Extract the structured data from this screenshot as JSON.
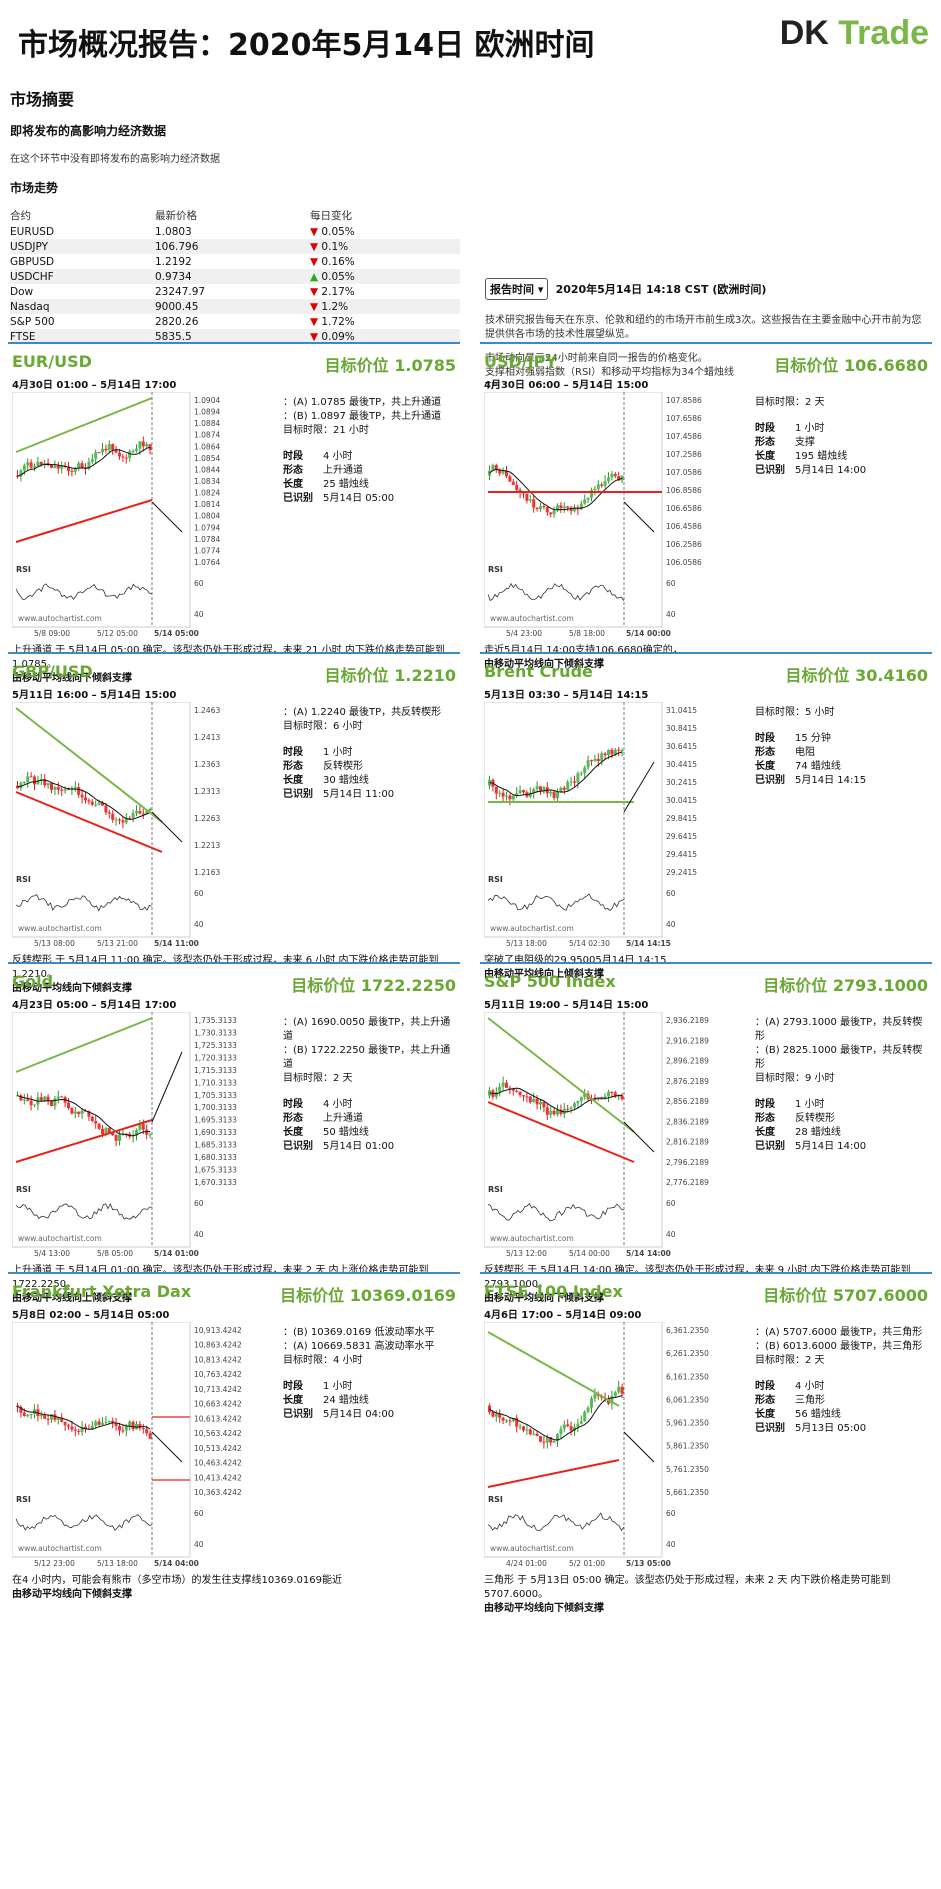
{
  "header": {
    "title": "市场概况报告：2020年5月14日 欧洲时间",
    "logo_a": "DK ",
    "logo_b": "Trade"
  },
  "summary": {
    "heading": "市场摘要",
    "sub": "即将发布的高影响力经济数据",
    "note": "在这个环节中没有即将发布的高影响力经济数据",
    "trend": "市场走势",
    "cols": [
      "合约",
      "最新价格",
      "每日变化"
    ],
    "rows": [
      {
        "name": "EURUSD",
        "price": "1.0803",
        "change": "0.05%",
        "dir": "down"
      },
      {
        "name": "USDJPY",
        "price": "106.796",
        "change": "0.1%",
        "dir": "down"
      },
      {
        "name": "GBPUSD",
        "price": "1.2192",
        "change": "0.16%",
        "dir": "down"
      },
      {
        "name": "USDCHF",
        "price": "0.9734",
        "change": "0.05%",
        "dir": "up"
      },
      {
        "name": "Dow",
        "price": "23247.97",
        "change": "2.17%",
        "dir": "down"
      },
      {
        "name": "Nasdaq",
        "price": "9000.45",
        "change": "1.2%",
        "dir": "down"
      },
      {
        "name": "S&P 500",
        "price": "2820.26",
        "change": "1.72%",
        "dir": "down"
      },
      {
        "name": "FTSE",
        "price": "5835.5",
        "change": "0.09%",
        "dir": "down"
      }
    ]
  },
  "report": {
    "button": "报告时间",
    "time": "2020年5月14日 14:18 CST (欧洲时间)",
    "p1": "技术研究报告每天在东京、伦敦和纽约的市场开市前生成3次。这些报告在主要金融中心开市前为您提供供各市场的技术性展望纵览。",
    "p2": "市场动向显示24小时前来自同一报告的价格变化。",
    "p3": "支撑相对强弱指数（RSI）和移动平均指标为34个蜡烛线",
    "p4": "TP:"
  },
  "colors": {
    "accent": "#6aa834",
    "border": "#3b8ac4",
    "red": "#e8221a",
    "green": "#7ab648"
  },
  "panels": [
    {
      "title": "EUR/USD",
      "target": "目标价位 1.0785",
      "range": "4月30日 01:00 – 5月14日 17:00",
      "tp": [
        "：(A) 1.0785 最後TP，共上升通道",
        "：(B) 1.0897 最後TP，共上升通道",
        "目标时限：21 小时"
      ],
      "kv": [
        [
          "时段",
          "4 小时"
        ],
        [
          "形态",
          "上升通道"
        ],
        [
          "长度",
          "25 蜡烛线"
        ],
        [
          "已识别",
          "5月14日 05:00"
        ]
      ],
      "desc": "上升通道 于 5月14日 05:00 确定。该型态仍处于形成过程，未来 21 小时 内下跌价格走势可能到 1.0785。",
      "desc2": "由移动平均线向下倾斜支撑",
      "yticks": [
        "1.0904",
        "1.0894",
        "1.0884",
        "1.0874",
        "1.0864",
        "1.0854",
        "1.0844",
        "1.0834",
        "1.0824",
        "1.0814",
        "1.0804",
        "1.0794",
        "1.0784",
        "1.0774",
        "1.0764"
      ],
      "xticks": [
        "5/8 09:00",
        "5/12 05:00",
        "5/14 05:00"
      ],
      "rsi": [
        "60",
        "40"
      ],
      "kind": "up"
    },
    {
      "title": "USD/JPY",
      "target": "目标价位 106.6680",
      "range": "4月30日 06:00 – 5月14日 15:00",
      "tp": [
        "目标时限：2 天"
      ],
      "kv": [
        [
          "时段",
          "1 小时"
        ],
        [
          "形态",
          "支撑"
        ],
        [
          "长度",
          "195 蜡烛线"
        ],
        [
          "已识别",
          "5月14日 14:00"
        ]
      ],
      "desc": "走近5月14日 14:00支持106.6680确定的，",
      "desc2": "由移动平均线向下倾斜支撑",
      "yticks": [
        "107.8586",
        "107.6586",
        "107.4586",
        "107.2586",
        "107.0586",
        "106.8586",
        "106.6586",
        "106.4586",
        "106.2586",
        "106.0586"
      ],
      "xticks": [
        "5/4 23:00",
        "5/8 18:00",
        "5/14 00:00"
      ],
      "rsi": [
        "60",
        "40"
      ],
      "kind": "sup"
    },
    {
      "title": "GBP/USD",
      "target": "目标价位 1.2210",
      "range": "5月11日 16:00 – 5月14日 15:00",
      "tp": [
        "：(A) 1.2240 最後TP，共反转楔形",
        "目标时限：6 小时"
      ],
      "kv": [
        [
          "时段",
          "1 小时"
        ],
        [
          "形态",
          "反转楔形"
        ],
        [
          "长度",
          "30 蜡烛线"
        ],
        [
          "已识别",
          "5月14日 11:00"
        ]
      ],
      "desc": "反转楔形 于 5月14日 11:00 确定。该型态仍处于形成过程，未来 6 小时 内下跌价格走势可能到 1.2210。",
      "desc2": "由移动平均线向下倾斜支撑",
      "yticks": [
        "1.2463",
        "1.2413",
        "1.2363",
        "1.2313",
        "1.2263",
        "1.2213",
        "1.2163"
      ],
      "xticks": [
        "5/13 08:00",
        "5/13 21:00",
        "5/14 11:00"
      ],
      "rsi": [
        "60",
        "40"
      ],
      "kind": "wedge"
    },
    {
      "title": "Brent Crude",
      "target": "目标价位 30.4160",
      "range": "5月13日 03:30 – 5月14日 14:15",
      "tp": [
        "目标时限：5 小时"
      ],
      "kv": [
        [
          "时段",
          "15 分钟"
        ],
        [
          "形态",
          "电阻"
        ],
        [
          "长度",
          "74 蜡烛线"
        ],
        [
          "已识别",
          "5月14日 14:15"
        ]
      ],
      "desc": "突破了电阻级的29.95005月14日 14:15",
      "desc2": "由移动平均线向上倾斜支撑",
      "yticks": [
        "31.0415",
        "30.8415",
        "30.6415",
        "30.4415",
        "30.2415",
        "30.0415",
        "29.8415",
        "29.6415",
        "29.4415",
        "29.2415"
      ],
      "xticks": [
        "5/13 18:00",
        "5/14 02:30",
        "5/14 14:15"
      ],
      "rsi": [
        "60",
        "40"
      ],
      "kind": "res"
    },
    {
      "title": "Gold",
      "target": "目标价位 1722.2250",
      "range": "4月23日 05:00 – 5月14日 17:00",
      "tp": [
        "：(A) 1690.0050 最後TP，共上升通道",
        "：(B) 1722.2250 最後TP，共上升通道",
        "目标时限：2 天"
      ],
      "kv": [
        [
          "时段",
          "4 小时"
        ],
        [
          "形态",
          "上升通道"
        ],
        [
          "长度",
          "50 蜡烛线"
        ],
        [
          "已识别",
          "5月14日 01:00"
        ]
      ],
      "desc": "上升通道 于 5月14日 01:00 确定。该型态仍处于形成过程，未来 2 天 内上涨价格走势可能到 1722.2250。",
      "desc2": "由移动平均线向上倾斜支撑",
      "yticks": [
        "1,735.3133",
        "1,730.3133",
        "1,725.3133",
        "1,720.3133",
        "1,715.3133",
        "1,710.3133",
        "1,705.3133",
        "1,700.3133",
        "1,695.3133",
        "1,690.3133",
        "1,685.3133",
        "1,680.3133",
        "1,675.3133",
        "1,670.3133"
      ],
      "xticks": [
        "5/4 13:00",
        "5/8 05:00",
        "5/14 01:00"
      ],
      "rsi": [
        "60",
        "40"
      ],
      "kind": "up"
    },
    {
      "title": "S&P 500 Index",
      "target": "目标价位 2793.1000",
      "range": "5月11日 19:00 – 5月14日 15:00",
      "tp": [
        "：(A) 2793.1000 最後TP，共反转楔形",
        "：(B) 2825.1000 最後TP，共反转楔形",
        "目标时限：9 小时"
      ],
      "kv": [
        [
          "时段",
          "1 小时"
        ],
        [
          "形态",
          "反转楔形"
        ],
        [
          "长度",
          "28 蜡烛线"
        ],
        [
          "已识别",
          "5月14日 14:00"
        ]
      ],
      "desc": "反转楔形 于 5月14日 14:00 确定。该型态仍处于形成过程，未来 9 小时 内下跌价格走势可能到 2793.1000。",
      "desc2": "由移动平均线向下倾斜支撑",
      "yticks": [
        "2,936.2189",
        "2,916.2189",
        "2,896.2189",
        "2,876.2189",
        "2,856.2189",
        "2,836.2189",
        "2,816.2189",
        "2,796.2189",
        "2,776.2189"
      ],
      "xticks": [
        "5/13 12:00",
        "5/14 00:00",
        "5/14 14:00"
      ],
      "rsi": [
        "60",
        "40"
      ],
      "kind": "wedge"
    },
    {
      "title": "Frankfurt Xetra Dax",
      "target": "目标价位 10369.0169",
      "range": "5月8日 02:00 – 5月14日 05:00",
      "tp": [
        "：(B) 10369.0169 低波动率水平",
        "：(A) 10669.5831 高波动率水平",
        "目标时限：4 小时"
      ],
      "kv": [
        [
          "时段",
          "1 小时"
        ],
        [
          "长度",
          "24 蜡烛线"
        ],
        [
          "已识别",
          "5月14日 04:00"
        ]
      ],
      "desc": "在4 小时内，可能会有熊市（多空市场）的发生往支撑线10369.0169能近",
      "desc2": "由移动平均线向下倾斜支撑",
      "yticks": [
        "10,913.4242",
        "10,863.4242",
        "10,813.4242",
        "10,763.4242",
        "10,713.4242",
        "10,663.4242",
        "10,613.4242",
        "10,563.4242",
        "10,513.4242",
        "10,463.4242",
        "10,413.4242",
        "10,363.4242"
      ],
      "xticks": [
        "5/12 23:00",
        "5/13 18:00",
        "5/14 04:00"
      ],
      "rsi": [
        "60",
        "40"
      ],
      "kind": "dax"
    },
    {
      "title": "FTSE 100 Index",
      "target": "目标价位 5707.6000",
      "range": "4月6日 17:00 – 5月14日 09:00",
      "tp": [
        "：(A) 5707.6000 最後TP，共三角形",
        "：(B) 6013.6000 最後TP，共三角形",
        "目标时限：2 天"
      ],
      "kv": [
        [
          "时段",
          "4 小时"
        ],
        [
          "形态",
          "三角形"
        ],
        [
          "长度",
          "56 蜡烛线"
        ],
        [
          "已识别",
          "5月13日 05:00"
        ]
      ],
      "desc": "三角形 于 5月13日 05:00 确定。该型态仍处于形成过程，未来 2 天 内下跌价格走势可能到 5707.6000。",
      "desc2": "由移动平均线向下倾斜支撑",
      "yticks": [
        "6,361.2350",
        "6,261.2350",
        "6,161.2350",
        "6,061.2350",
        "5,961.2350",
        "5,861.2350",
        "5,761.2350",
        "5,661.2350"
      ],
      "xticks": [
        "4/24 01:00",
        "5/2 01:00",
        "5/13 05:00"
      ],
      "rsi": [
        "60",
        "40"
      ],
      "kind": "tri"
    }
  ],
  "watermark": "www.autochartist.com",
  "rsi_label": "RSI"
}
